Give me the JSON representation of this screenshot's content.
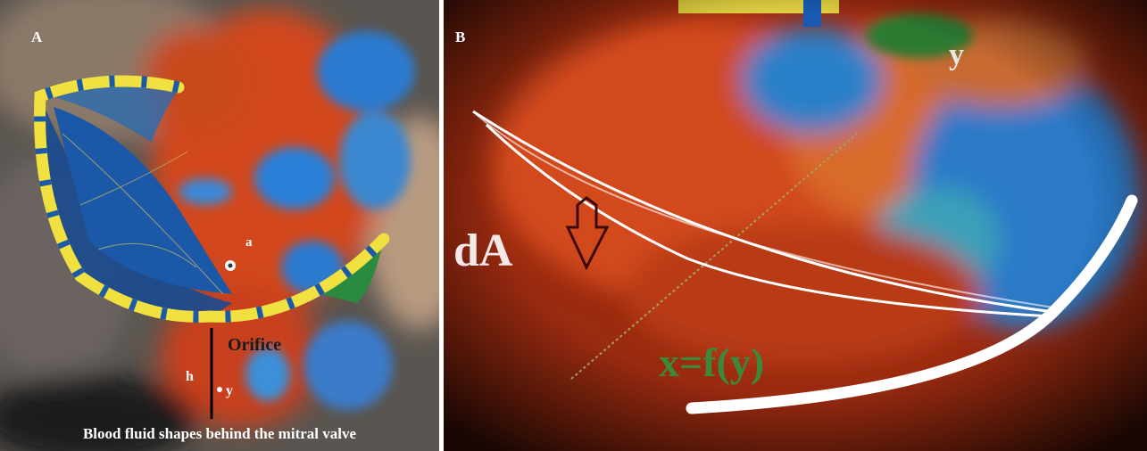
{
  "panel_a": {
    "label": "A",
    "point_label": "a",
    "orifice_label": "Orifice",
    "height_label": "h",
    "y_label": "y",
    "caption": "Blood fluid shapes behind the mitral valve"
  },
  "panel_b": {
    "label": "B",
    "y_label": "y",
    "area_label": "dA",
    "function_label": "x=f(y)"
  }
}
